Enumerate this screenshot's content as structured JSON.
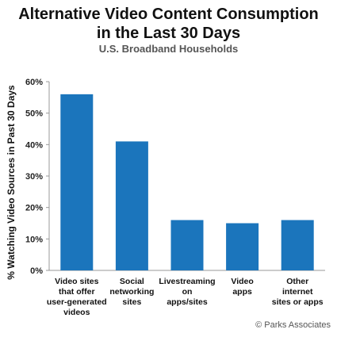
{
  "chart_data": {
    "type": "bar",
    "title_lines": [
      "Alternative Video Content Consumption",
      "in the Last 30 Days"
    ],
    "subtitle": "U.S. Broadband Households",
    "xlabel": "",
    "ylabel": "% Watching Video Sources in Past 30 Days",
    "categories": [
      [
        "Video sites",
        "that offer",
        "user-generated",
        "videos"
      ],
      [
        "Social",
        "networking",
        "sites"
      ],
      [
        "Livestreaming",
        "on",
        "apps/sites"
      ],
      [
        "Video",
        "apps"
      ],
      [
        "Other",
        "internet",
        "sites or apps"
      ]
    ],
    "values": [
      56,
      41,
      16,
      15,
      16
    ],
    "ylim": [
      0,
      60
    ],
    "yticks": [
      "0%",
      "10%",
      "20%",
      "30%",
      "40%",
      "50%",
      "60%"
    ],
    "ytick_values": [
      0,
      10,
      20,
      30,
      40,
      50,
      60
    ],
    "bar_color": "#1b75bc",
    "grid": false
  },
  "credit": "© Parks Associates"
}
